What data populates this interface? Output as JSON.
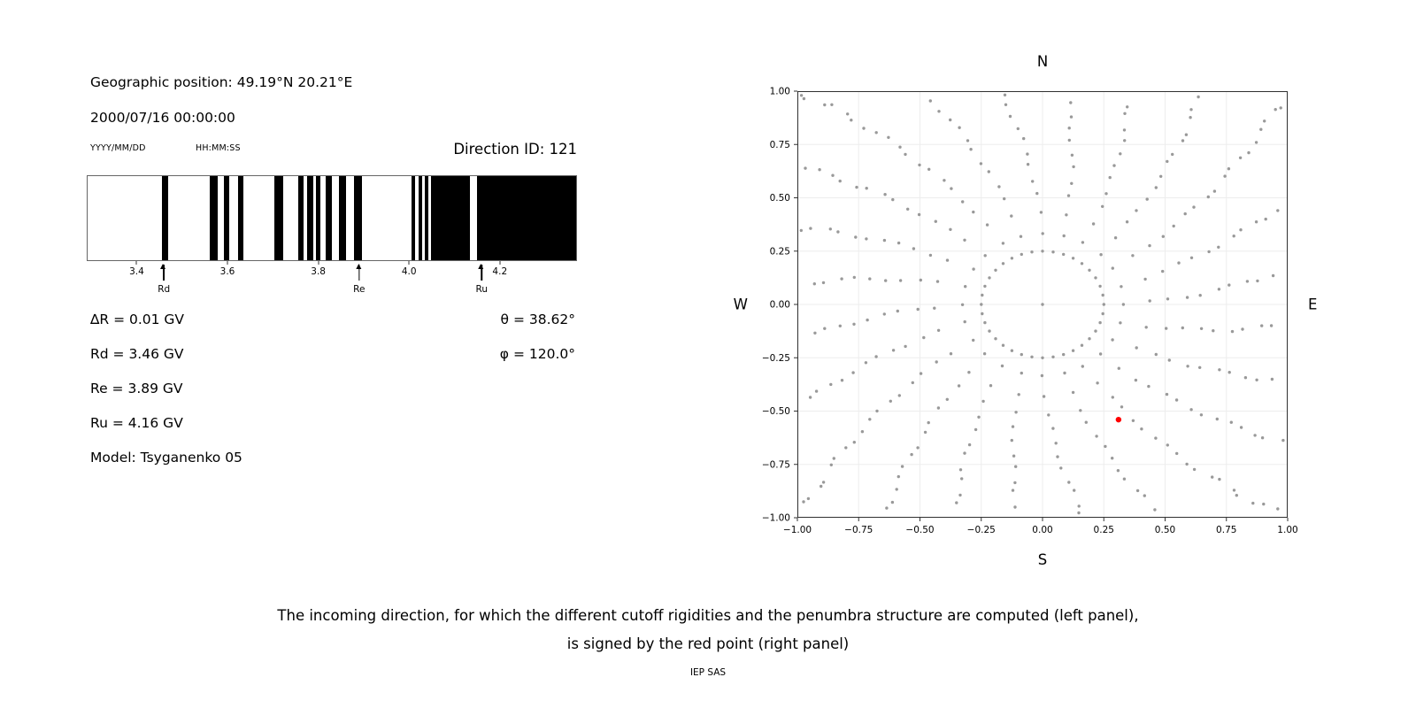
{
  "left_panel": {
    "geo_position": "Geographic position: 49.19°N 20.21°E",
    "datetime": "2000/07/16 00:00:00",
    "date_format": "YYYY/MM/DD",
    "time_format": "HH:MM:SS",
    "direction_id": "Direction ID: 121",
    "info": {
      "delta_r": "∆R = 0.01 GV",
      "rd": "Rd = 3.46 GV",
      "re": "Re = 3.89 GV",
      "ru": "Ru = 4.16 GV",
      "model": "Model: Tsyganenko 05",
      "theta": "θ = 38.62°",
      "phi": "φ = 120.0°"
    }
  },
  "caption": {
    "line1": "The incoming direction, for which the different cutoff rigidities and the penumbra structure are computed (left panel),",
    "line2": "is signed by the red point (right panel)",
    "credit": "IEP SAS"
  },
  "chart_data": [
    {
      "type": "bar",
      "x_range": [
        3.29,
        4.37
      ],
      "x_ticks": [
        3.4,
        3.6,
        3.8,
        4.0,
        4.2
      ],
      "bar_color": "#000000",
      "black_intervals": [
        [
          3.455,
          3.468
        ],
        [
          3.56,
          3.578
        ],
        [
          3.592,
          3.604
        ],
        [
          3.622,
          3.634
        ],
        [
          3.702,
          3.722
        ],
        [
          3.755,
          3.768
        ],
        [
          3.776,
          3.788
        ],
        [
          3.795,
          3.805
        ],
        [
          3.817,
          3.831
        ],
        [
          3.846,
          3.862
        ],
        [
          3.878,
          3.897
        ],
        [
          4.006,
          4.014
        ],
        [
          4.021,
          4.03
        ],
        [
          4.036,
          4.044
        ],
        [
          4.05,
          4.135
        ],
        [
          4.15,
          4.37
        ]
      ],
      "markers": [
        {
          "label": "Rd",
          "x": 3.46
        },
        {
          "label": "Re",
          "x": 3.89
        },
        {
          "label": "Ru",
          "x": 4.16
        }
      ]
    },
    {
      "type": "scatter",
      "compass": {
        "top": "N",
        "bottom": "S",
        "left": "W",
        "right": "E"
      },
      "xlim": [
        -1,
        1
      ],
      "ylim": [
        -1,
        1
      ],
      "ticks": [
        -1.0,
        -0.75,
        -0.5,
        -0.25,
        0.0,
        0.25,
        0.5,
        0.75,
        1.0
      ],
      "grid": true,
      "dot_color": "#999999",
      "spokes": {
        "count": 24,
        "angle_step_deg": 15,
        "r_start": 0.33,
        "r_end": 1.45,
        "points_per_spoke": 20,
        "curvature_deg": 14,
        "ease_power": 0.8
      },
      "inner_ring": {
        "radius": 0.25,
        "points": 36
      },
      "center_point": [
        0,
        0
      ],
      "red_point": {
        "x": 0.31,
        "y": -0.54,
        "color": "#ff0000"
      }
    }
  ]
}
